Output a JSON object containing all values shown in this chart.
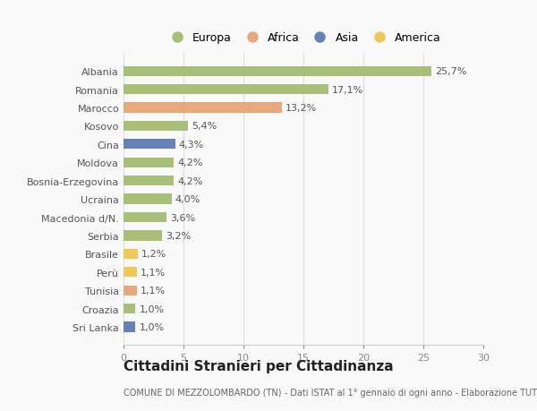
{
  "categories": [
    "Albania",
    "Romania",
    "Marocco",
    "Kosovo",
    "Cina",
    "Moldova",
    "Bosnia-Erzegovina",
    "Ucraina",
    "Macedonia d/N.",
    "Serbia",
    "Brasile",
    "Perù",
    "Tunisia",
    "Croazia",
    "Sri Lanka"
  ],
  "values": [
    25.7,
    17.1,
    13.2,
    5.4,
    4.3,
    4.2,
    4.2,
    4.0,
    3.6,
    3.2,
    1.2,
    1.1,
    1.1,
    1.0,
    1.0
  ],
  "labels": [
    "25,7%",
    "17,1%",
    "13,2%",
    "5,4%",
    "4,3%",
    "4,2%",
    "4,2%",
    "4,0%",
    "3,6%",
    "3,2%",
    "1,2%",
    "1,1%",
    "1,1%",
    "1,0%",
    "1,0%"
  ],
  "continents": [
    "Europa",
    "Europa",
    "Africa",
    "Europa",
    "Asia",
    "Europa",
    "Europa",
    "Europa",
    "Europa",
    "Europa",
    "America",
    "America",
    "Africa",
    "Europa",
    "Asia"
  ],
  "colors": {
    "Europa": "#a8bf78",
    "Africa": "#e8a87c",
    "Asia": "#6680b8",
    "America": "#f0c85a"
  },
  "title": "Cittadini Stranieri per Cittadinanza",
  "subtitle": "COMUNE DI MEZZOLOMBARDO (TN) - Dati ISTAT al 1° gennaio di ogni anno - Elaborazione TUTTITALIA.IT",
  "xlim": [
    0,
    30
  ],
  "xticks": [
    0,
    5,
    10,
    15,
    20,
    25,
    30
  ],
  "background_color": "#f9f9f9",
  "bar_height": 0.55,
  "title_fontsize": 11,
  "subtitle_fontsize": 7,
  "label_fontsize": 8,
  "tick_fontsize": 8,
  "legend_fontsize": 9
}
